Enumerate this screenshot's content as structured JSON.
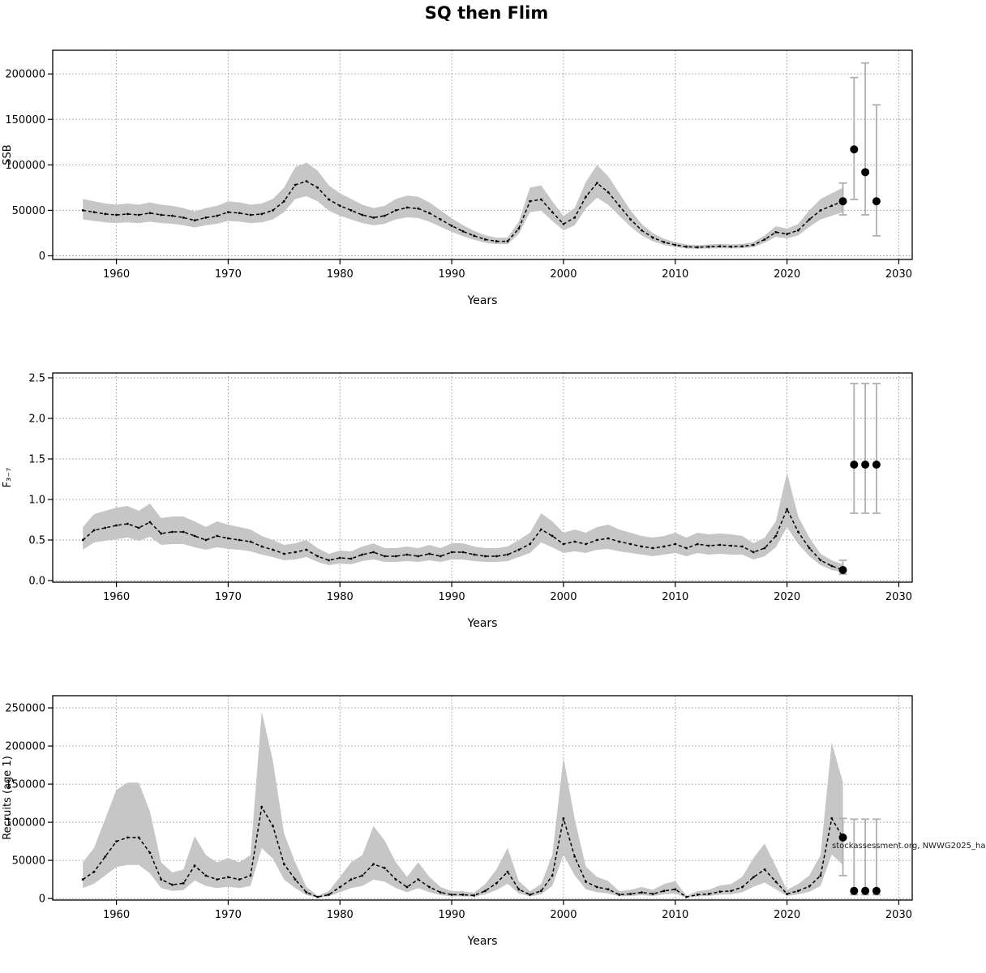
{
  "title": "SQ then Flim",
  "footer_note": "stockassessment.org, NWWG2025_ha",
  "colors": {
    "band": "#c6c6c6",
    "median": "#000000",
    "grid": "#9a9a9a",
    "errorbar": "#b0b0b0",
    "point": "#000000",
    "box": "#000000"
  },
  "chart_data": [
    {
      "type": "area",
      "title": "",
      "xlabel": "Years",
      "ylabel": "SSB",
      "xlim": [
        1954.3,
        2031.2
      ],
      "ylim": [
        -4000,
        226000
      ],
      "xticks": {
        "values": [
          1960,
          1970,
          1980,
          1990,
          2000,
          2010,
          2020,
          2030
        ],
        "labels": [
          "1960",
          "1970",
          "1980",
          "1990",
          "2000",
          "2010",
          "2020",
          "2030"
        ]
      },
      "yticks": {
        "values": [
          0,
          50000,
          100000,
          150000,
          200000
        ],
        "labels": [
          "0",
          "50000",
          "100000",
          "150000",
          "200000"
        ]
      },
      "grid": true,
      "x": [
        1957,
        1958,
        1959,
        1960,
        1961,
        1962,
        1963,
        1964,
        1965,
        1966,
        1967,
        1968,
        1969,
        1970,
        1971,
        1972,
        1973,
        1974,
        1975,
        1976,
        1977,
        1978,
        1979,
        1980,
        1981,
        1982,
        1983,
        1984,
        1985,
        1986,
        1987,
        1988,
        1989,
        1990,
        1991,
        1992,
        1993,
        1994,
        1995,
        1996,
        1997,
        1998,
        1999,
        2000,
        2001,
        2002,
        2003,
        2004,
        2005,
        2006,
        2007,
        2008,
        2009,
        2010,
        2011,
        2012,
        2013,
        2014,
        2015,
        2016,
        2017,
        2018,
        2019,
        2020,
        2021,
        2022,
        2023,
        2024,
        2025
      ],
      "series": [
        {
          "name": "median",
          "values": [
            50000,
            48000,
            46000,
            45000,
            46000,
            45000,
            47000,
            45000,
            44000,
            42000,
            39000,
            42000,
            44000,
            48000,
            47000,
            45000,
            46000,
            50000,
            60000,
            78000,
            82000,
            75000,
            62000,
            55000,
            50000,
            45000,
            42000,
            44000,
            50000,
            53000,
            52000,
            47000,
            40000,
            33000,
            27000,
            22000,
            18000,
            16000,
            16000,
            30000,
            60000,
            62000,
            48000,
            35000,
            42000,
            65000,
            80000,
            70000,
            55000,
            40000,
            28000,
            20000,
            15000,
            12000,
            10000,
            9500,
            10000,
            10500,
            10000,
            10500,
            12000,
            18000,
            26000,
            24000,
            28000,
            40000,
            50000,
            55000,
            60000
          ]
        }
      ],
      "band": {
        "lo": [
          40000,
          38400,
          36800,
          36000,
          36800,
          36000,
          37600,
          36000,
          35200,
          33600,
          31200,
          33600,
          35200,
          38400,
          37600,
          36000,
          36800,
          40000,
          48000,
          62400,
          65600,
          60000,
          49600,
          44000,
          40000,
          36000,
          33600,
          35200,
          40000,
          42400,
          41600,
          37600,
          32000,
          26400,
          21600,
          17600,
          14400,
          12800,
          12800,
          24000,
          48000,
          49600,
          38400,
          28000,
          33600,
          52000,
          64000,
          56000,
          44000,
          32000,
          22400,
          16000,
          12000,
          9600,
          8000,
          7600,
          8000,
          8400,
          8000,
          8400,
          9600,
          14400,
          20800,
          19200,
          22400,
          32000,
          40000,
          44000,
          48000
        ],
        "hi": [
          62500,
          60000,
          57500,
          56250,
          57500,
          56250,
          58750,
          56250,
          55000,
          52500,
          48750,
          52500,
          55000,
          60000,
          58750,
          56250,
          57500,
          62500,
          75000,
          97500,
          102500,
          93750,
          77500,
          68750,
          62500,
          56250,
          52500,
          55000,
          62500,
          66250,
          65000,
          58750,
          50000,
          41250,
          33750,
          27500,
          22500,
          20000,
          20000,
          37500,
          75000,
          77500,
          60000,
          43750,
          52500,
          81250,
          100000,
          87500,
          68750,
          50000,
          35000,
          25000,
          18750,
          15000,
          12500,
          11875,
          12500,
          13125,
          12500,
          13125,
          15000,
          22500,
          32500,
          30000,
          35000,
          50000,
          62500,
          68750,
          75000
        ]
      },
      "forecast": {
        "x": [
          2025,
          2026,
          2027,
          2028
        ],
        "y": [
          60000,
          117000,
          92000,
          60000
        ],
        "lo": [
          45000,
          62000,
          45000,
          22000
        ],
        "hi": [
          80000,
          196000,
          212000,
          166000
        ]
      }
    },
    {
      "type": "area",
      "title": "",
      "xlabel": "Years",
      "ylabel": "F₃₋₇",
      "xlim": [
        1954.3,
        2031.2
      ],
      "ylim": [
        -0.02,
        2.56
      ],
      "xticks": {
        "values": [
          1960,
          1970,
          1980,
          1990,
          2000,
          2010,
          2020,
          2030
        ],
        "labels": [
          "1960",
          "1970",
          "1980",
          "1990",
          "2000",
          "2010",
          "2020",
          "2030"
        ]
      },
      "yticks": {
        "values": [
          0.0,
          0.5,
          1.0,
          1.5,
          2.0,
          2.5
        ],
        "labels": [
          "0.0",
          "0.5",
          "1.0",
          "1.5",
          "2.0",
          "2.5"
        ]
      },
      "grid": true,
      "x": [
        1957,
        1958,
        1959,
        1960,
        1961,
        1962,
        1963,
        1964,
        1965,
        1966,
        1967,
        1968,
        1969,
        1970,
        1971,
        1972,
        1973,
        1974,
        1975,
        1976,
        1977,
        1978,
        1979,
        1980,
        1981,
        1982,
        1983,
        1984,
        1985,
        1986,
        1987,
        1988,
        1989,
        1990,
        1991,
        1992,
        1993,
        1994,
        1995,
        1996,
        1997,
        1998,
        1999,
        2000,
        2001,
        2002,
        2003,
        2004,
        2005,
        2006,
        2007,
        2008,
        2009,
        2010,
        2011,
        2012,
        2013,
        2014,
        2015,
        2016,
        2017,
        2018,
        2019,
        2020,
        2021,
        2022,
        2023,
        2024,
        2025
      ],
      "series": [
        {
          "name": "median",
          "values": [
            0.5,
            0.62,
            0.65,
            0.68,
            0.7,
            0.65,
            0.72,
            0.58,
            0.6,
            0.6,
            0.55,
            0.5,
            0.55,
            0.52,
            0.5,
            0.48,
            0.42,
            0.38,
            0.33,
            0.35,
            0.38,
            0.3,
            0.25,
            0.28,
            0.27,
            0.32,
            0.35,
            0.3,
            0.3,
            0.32,
            0.3,
            0.33,
            0.3,
            0.35,
            0.35,
            0.32,
            0.3,
            0.3,
            0.32,
            0.38,
            0.45,
            0.63,
            0.55,
            0.45,
            0.48,
            0.45,
            0.5,
            0.52,
            0.48,
            0.45,
            0.42,
            0.4,
            0.42,
            0.45,
            0.4,
            0.45,
            0.43,
            0.44,
            0.43,
            0.42,
            0.35,
            0.4,
            0.55,
            0.88,
            0.6,
            0.4,
            0.25,
            0.18,
            0.13
          ]
        }
      ],
      "band": {
        "lo": [
          0.38,
          0.47,
          0.49,
          0.51,
          0.53,
          0.49,
          0.54,
          0.44,
          0.45,
          0.45,
          0.41,
          0.38,
          0.41,
          0.39,
          0.38,
          0.36,
          0.32,
          0.29,
          0.25,
          0.26,
          0.29,
          0.23,
          0.19,
          0.21,
          0.2,
          0.24,
          0.26,
          0.23,
          0.23,
          0.24,
          0.23,
          0.25,
          0.23,
          0.26,
          0.26,
          0.24,
          0.23,
          0.23,
          0.24,
          0.29,
          0.34,
          0.47,
          0.41,
          0.34,
          0.36,
          0.34,
          0.38,
          0.39,
          0.36,
          0.34,
          0.32,
          0.3,
          0.32,
          0.34,
          0.3,
          0.34,
          0.32,
          0.33,
          0.32,
          0.32,
          0.26,
          0.3,
          0.41,
          0.66,
          0.45,
          0.3,
          0.19,
          0.13,
          0.1
        ],
        "hi": [
          0.66,
          0.82,
          0.86,
          0.9,
          0.92,
          0.86,
          0.95,
          0.77,
          0.79,
          0.79,
          0.73,
          0.66,
          0.73,
          0.69,
          0.66,
          0.63,
          0.55,
          0.5,
          0.44,
          0.46,
          0.5,
          0.4,
          0.33,
          0.37,
          0.36,
          0.42,
          0.46,
          0.4,
          0.4,
          0.42,
          0.4,
          0.44,
          0.4,
          0.46,
          0.46,
          0.42,
          0.4,
          0.4,
          0.42,
          0.5,
          0.59,
          0.83,
          0.73,
          0.59,
          0.63,
          0.59,
          0.66,
          0.69,
          0.63,
          0.59,
          0.55,
          0.53,
          0.55,
          0.59,
          0.53,
          0.59,
          0.57,
          0.58,
          0.57,
          0.55,
          0.46,
          0.53,
          0.73,
          1.33,
          0.79,
          0.53,
          0.33,
          0.25,
          0.2
        ]
      },
      "forecast": {
        "x": [
          2025,
          2026,
          2027,
          2028
        ],
        "y": [
          0.13,
          1.43,
          1.43,
          1.43
        ],
        "lo": [
          0.08,
          0.83,
          0.83,
          0.83
        ],
        "hi": [
          0.25,
          2.43,
          2.43,
          2.43
        ]
      }
    },
    {
      "type": "area",
      "title": "",
      "xlabel": "Years",
      "ylabel": "Recruits (age 1)",
      "xlim": [
        1954.3,
        2031.2
      ],
      "ylim": [
        -2000,
        266000
      ],
      "xticks": {
        "values": [
          1960,
          1970,
          1980,
          1990,
          2000,
          2010,
          2020,
          2030
        ],
        "labels": [
          "1960",
          "1970",
          "1980",
          "1990",
          "2000",
          "2010",
          "2020",
          "2030"
        ]
      },
      "yticks": {
        "values": [
          0,
          50000,
          100000,
          150000,
          200000,
          250000
        ],
        "labels": [
          "0",
          "50000",
          "100000",
          "150000",
          "200000",
          "250000"
        ]
      },
      "grid": true,
      "x": [
        1957,
        1958,
        1959,
        1960,
        1961,
        1962,
        1963,
        1964,
        1965,
        1966,
        1967,
        1968,
        1969,
        1970,
        1971,
        1972,
        1973,
        1974,
        1975,
        1976,
        1977,
        1978,
        1979,
        1980,
        1981,
        1982,
        1983,
        1984,
        1985,
        1986,
        1987,
        1988,
        1989,
        1990,
        1991,
        1992,
        1993,
        1994,
        1995,
        1996,
        1997,
        1998,
        1999,
        2000,
        2001,
        2002,
        2003,
        2004,
        2005,
        2006,
        2007,
        2008,
        2009,
        2010,
        2011,
        2012,
        2013,
        2014,
        2015,
        2016,
        2017,
        2018,
        2019,
        2020,
        2021,
        2022,
        2023,
        2024,
        2025
      ],
      "series": [
        {
          "name": "median",
          "values": [
            25000,
            35000,
            55000,
            75000,
            80000,
            80000,
            60000,
            25000,
            18000,
            20000,
            43000,
            30000,
            25000,
            28000,
            25000,
            30000,
            120000,
            95000,
            45000,
            25000,
            8000,
            2000,
            5000,
            15000,
            25000,
            30000,
            45000,
            40000,
            25000,
            15000,
            25000,
            15000,
            8000,
            5000,
            5000,
            4000,
            10000,
            20000,
            35000,
            12000,
            5000,
            10000,
            30000,
            105000,
            55000,
            22000,
            15000,
            12000,
            5000,
            6000,
            8000,
            6000,
            10000,
            12000,
            2000,
            5000,
            6000,
            9000,
            10000,
            15000,
            28000,
            38000,
            22000,
            6000,
            10000,
            16000,
            30000,
            105000,
            80000
          ]
        }
      ],
      "band": {
        "lo": [
          13750,
          19250,
          30250,
          41250,
          44000,
          44000,
          33000,
          13750,
          9900,
          11000,
          23650,
          16500,
          13750,
          15400,
          13750,
          16500,
          66000,
          52250,
          24750,
          13750,
          4400,
          1100,
          2750,
          8250,
          13750,
          16500,
          24750,
          22000,
          13750,
          8250,
          13750,
          8250,
          4400,
          2750,
          2750,
          2200,
          5500,
          11000,
          19250,
          6600,
          2750,
          5500,
          16500,
          57750,
          30250,
          12100,
          8250,
          6600,
          2750,
          3300,
          4400,
          3300,
          5500,
          6600,
          1100,
          2750,
          3300,
          4950,
          5500,
          8250,
          15400,
          20900,
          12100,
          3300,
          5500,
          8800,
          16500,
          57750,
          44000
        ],
        "hi": [
          47500,
          66500,
          104500,
          142500,
          152000,
          152000,
          114000,
          47500,
          34200,
          38000,
          81700,
          57000,
          47500,
          53200,
          47500,
          57000,
          245000,
          180500,
          85500,
          47500,
          15200,
          3800,
          9500,
          28500,
          47500,
          57000,
          95000,
          76000,
          47500,
          28500,
          47500,
          28500,
          15200,
          9500,
          9500,
          7600,
          19000,
          38000,
          66500,
          22800,
          9500,
          19000,
          57000,
          185000,
          104500,
          41800,
          28500,
          22800,
          9500,
          11400,
          15200,
          11400,
          19000,
          22800,
          3800,
          9500,
          11400,
          17100,
          19000,
          28500,
          53200,
          72200,
          41800,
          11400,
          19000,
          30400,
          57000,
          205000,
          152000
        ]
      },
      "forecast": {
        "x": [
          2025,
          2026,
          2027,
          2028
        ],
        "y": [
          80000,
          10000,
          10000,
          10000
        ],
        "lo": [
          30000,
          5000,
          5000,
          5000
        ],
        "hi": [
          105000,
          104000,
          104000,
          104000
        ]
      }
    }
  ]
}
